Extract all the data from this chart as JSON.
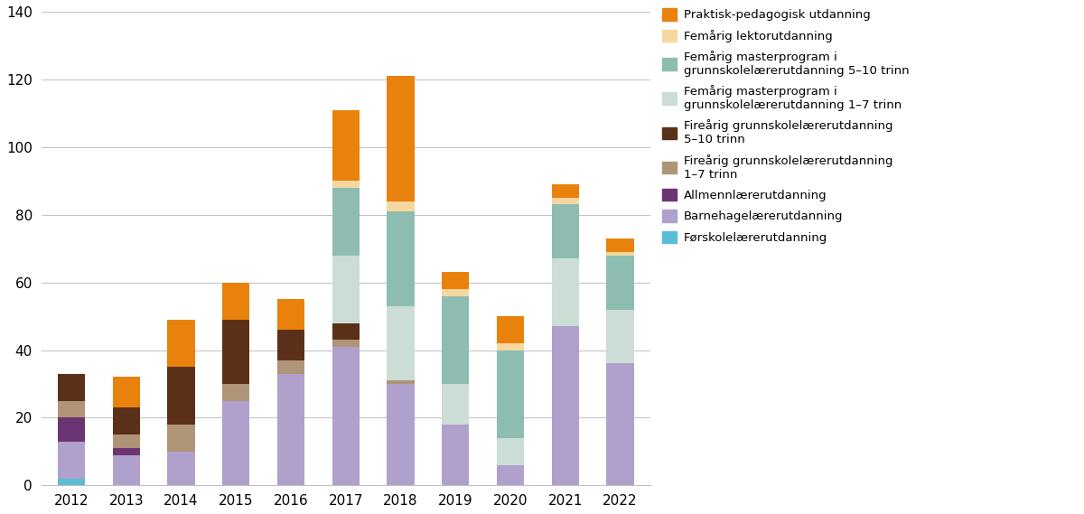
{
  "years": [
    2012,
    2013,
    2014,
    2015,
    2016,
    2017,
    2018,
    2019,
    2020,
    2021,
    2022
  ],
  "series": {
    "Førskolelærerutdanning": {
      "color": "#5bbcd6",
      "values": [
        2,
        0,
        0,
        0,
        0,
        0,
        0,
        0,
        0,
        0,
        0
      ]
    },
    "Barnehagelærerutdanning": {
      "color": "#b0a0cc",
      "values": [
        11,
        9,
        10,
        25,
        33,
        41,
        30,
        18,
        6,
        47,
        36
      ]
    },
    "Allmennlærerutdanning": {
      "color": "#6b3575",
      "values": [
        7,
        2,
        0,
        0,
        0,
        0,
        0,
        0,
        0,
        0,
        0
      ]
    },
    "Fireårig grunnskolelærerutdanning 1-7 trinn": {
      "color": "#b09478",
      "values": [
        5,
        4,
        8,
        5,
        4,
        2,
        1,
        0,
        0,
        0,
        0
      ]
    },
    "Fireårig grunnskolelærerutdanning 5-10 trinn": {
      "color": "#5a3018",
      "values": [
        8,
        8,
        17,
        19,
        9,
        5,
        0,
        0,
        0,
        0,
        0
      ]
    },
    "Femårig masterprogram i grunnskolelærerutdanning 1-7 trinn": {
      "color": "#ccddd5",
      "values": [
        0,
        0,
        0,
        0,
        0,
        20,
        22,
        12,
        8,
        20,
        16
      ]
    },
    "Femårig masterprogram i grunnskolelærerutdanning 5-10 trinn": {
      "color": "#8dbdb0",
      "values": [
        0,
        0,
        0,
        0,
        0,
        20,
        28,
        26,
        26,
        16,
        16
      ]
    },
    "Femårig lektorutdanning": {
      "color": "#f5d8a0",
      "values": [
        0,
        0,
        0,
        0,
        0,
        2,
        3,
        2,
        2,
        2,
        1
      ]
    },
    "Praktisk-pedagogisk utdanning": {
      "color": "#e8820c",
      "values": [
        0,
        9,
        14,
        11,
        9,
        21,
        37,
        5,
        8,
        4,
        4
      ]
    }
  },
  "ylim": [
    0,
    140
  ],
  "yticks": [
    0,
    20,
    40,
    60,
    80,
    100,
    120,
    140
  ],
  "figsize": [
    12.0,
    5.69
  ],
  "dpi": 100,
  "stack_order": [
    "Førskolelærerutdanning",
    "Barnehagelærerutdanning",
    "Allmennlærerutdanning",
    "Fireårig grunnskolelærerutdanning 1-7 trinn",
    "Fireårig grunnskolelærerutdanning 5-10 trinn",
    "Femårig masterprogram i grunnskolelærerutdanning 1-7 trinn",
    "Femårig masterprogram i grunnskolelærerutdanning 5-10 trinn",
    "Femårig lektorutdanning",
    "Praktisk-pedagogisk utdanning"
  ],
  "legend_order": [
    "Praktisk-pedagogisk utdanning",
    "Femårig lektorutdanning",
    "Femårig masterprogram i grunnskolelærerutdanning 5-10 trinn",
    "Femårig masterprogram i grunnskolelærerutdanning 1-7 trinn",
    "Fireårig grunnskolelærerutdanning 5-10 trinn",
    "Fireårig grunnskolelærerutdanning 1-7 trinn",
    "Allmennlærerutdanning",
    "Barnehagelærerutdanning",
    "Førskolelærerutdanning"
  ],
  "legend_labels": {
    "Praktisk-pedagogisk utdanning": "Praktisk-pedagogisk utdanning",
    "Femårig lektorutdanning": "Femårig lektorutdanning",
    "Femårig masterprogram i grunnskolelærerutdanning 5-10 trinn": "Femårig masterprogram i\ngrunnskolelærerutdanning 5–10 trinn",
    "Femårig masterprogram i grunnskolelærerutdanning 1-7 trinn": "Femårig masterprogram i\ngrunnskolelærerutdanning 1–7 trinn",
    "Fireårig grunnskolelærerutdanning 5-10 trinn": "Fireårig grunnskolelærerutdanning\n5–10 trinn",
    "Fireårig grunnskolelærerutdanning 1-7 trinn": "Fireårig grunnskolelærerutdanning\n1–7 trinn",
    "Allmennlærerutdanning": "Allmennlærerutdanning",
    "Barnehagelærerutdanning": "Barnehagelærerutdanning",
    "Førskolelærerutdanning": "Førskolelærerutdanning"
  }
}
